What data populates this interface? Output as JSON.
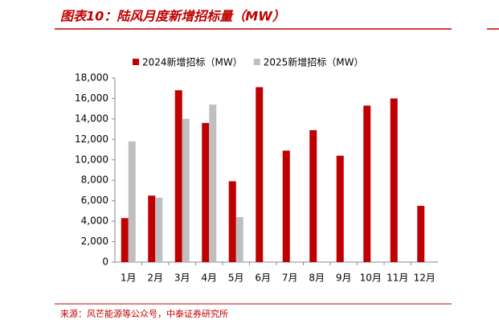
{
  "title": "图表10：陆风月度新增招标量（MW）",
  "source": "来源：风芒能源等公众号，中泰证券研究所",
  "chart_data": {
    "type": "bar",
    "categories": [
      "1月",
      "2月",
      "3月",
      "4月",
      "5月",
      "6月",
      "7月",
      "8月",
      "9月",
      "10月",
      "11月",
      "12月"
    ],
    "series": [
      {
        "name": "2024新增招标（MW）",
        "color": "#c00000",
        "values": [
          4300,
          6500,
          16800,
          13600,
          7900,
          17100,
          10900,
          12900,
          10400,
          15300,
          16000,
          5500
        ]
      },
      {
        "name": "2025新增招标（MW）",
        "color": "#bfbfbf",
        "values": [
          11800,
          6300,
          14000,
          15400,
          4400,
          null,
          null,
          null,
          null,
          null,
          null,
          null
        ]
      }
    ],
    "ylim": [
      0,
      18000
    ],
    "yticks": [
      0,
      {
        "value": 2000,
        "label": "2,000"
      },
      {
        "value": 4000,
        "label": "4,000"
      },
      {
        "value": 6000,
        "label": "6,000"
      },
      {
        "value": 8000,
        "label": "8,000"
      },
      {
        "value": 10000,
        "label": "10,000"
      },
      {
        "value": 12000,
        "label": "12,000"
      },
      {
        "value": 14000,
        "label": "14,000"
      },
      {
        "value": 16000,
        "label": "16,000"
      },
      {
        "value": 18000,
        "label": "18,000"
      }
    ],
    "grid": false,
    "legend": "top"
  }
}
